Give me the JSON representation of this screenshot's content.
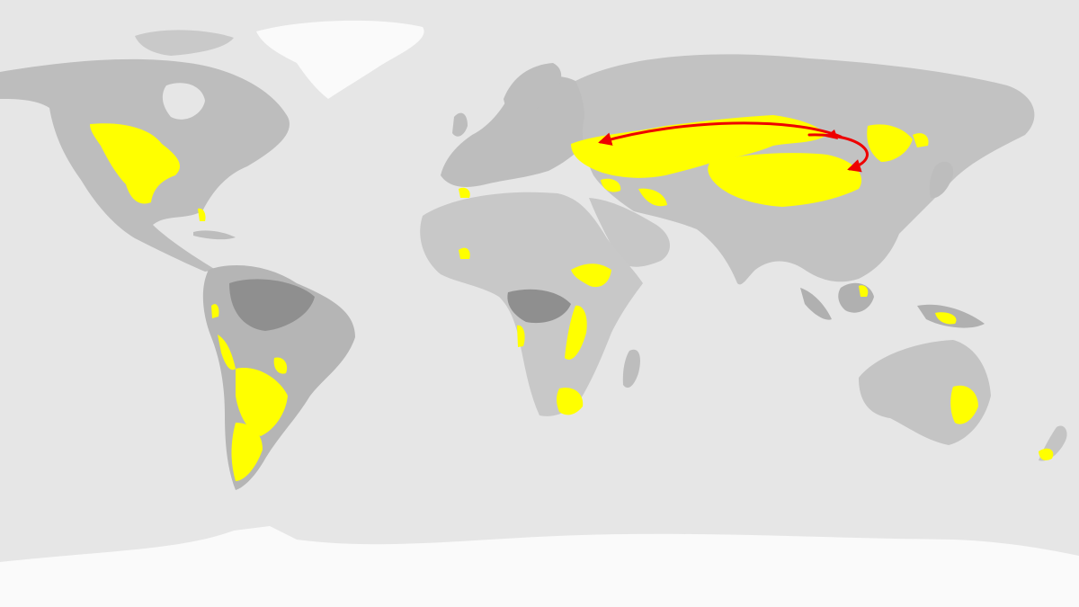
{
  "map": {
    "projection": "equirectangular",
    "colors": {
      "ocean": "#e6e6e6",
      "land": "#bdbdbd",
      "land_dark": "#8f8f8f",
      "ice": "#ffffff",
      "highlight": "#ffff00",
      "arrow": "#ee0000"
    },
    "highlight_regions": [
      "north-american-prairie",
      "florida",
      "andes-north",
      "andes-west",
      "pampas",
      "patagonia",
      "african-sahel",
      "east-african-highlands",
      "south-african-highveld",
      "eurasian-steppe",
      "mongolian-plateau",
      "manchurian-plain",
      "iberia",
      "anatolia",
      "australian-grassland",
      "new-zealand",
      "new-guinea-highlands",
      "borneo-highlands"
    ],
    "migration_arrows": [
      {
        "name": "westward-route",
        "from": "mongolia",
        "to": "black-sea"
      },
      {
        "name": "southward-loop",
        "from": "mongolia",
        "to": "north-china"
      }
    ]
  }
}
